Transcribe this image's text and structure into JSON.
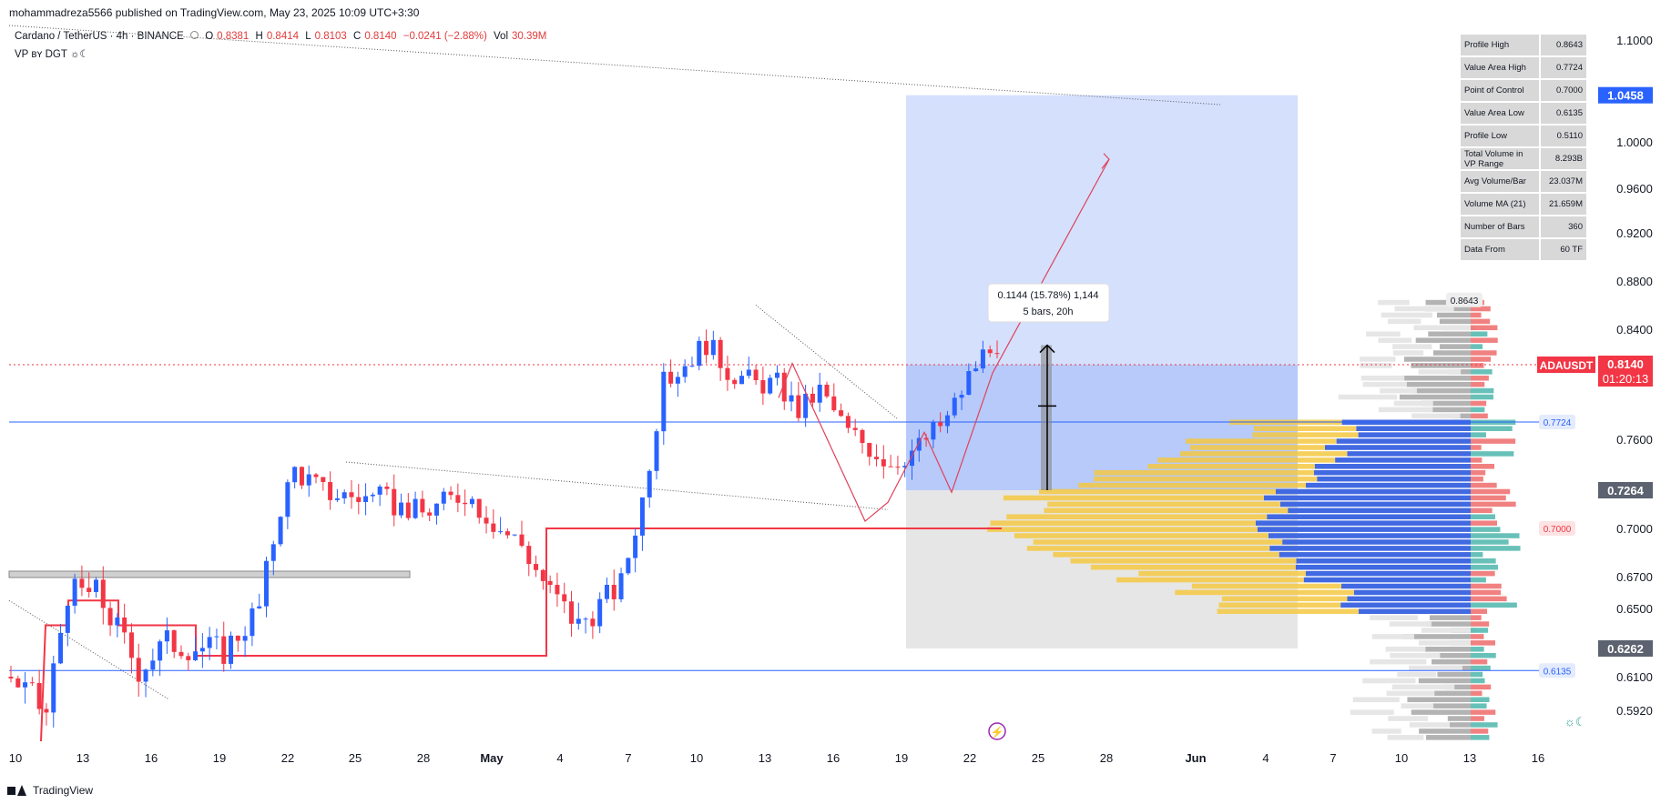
{
  "header": {
    "published_line": "mohammadreza5566 published on TradingView.com, May 23, 2025 10:09 UTC+3:30",
    "symbol_line": "Cardano / TetherUS · 4h · BINANCE",
    "open_label": "O",
    "open_value": "0.8381",
    "high_label": "H",
    "high_value": "0.8414",
    "low_label": "L",
    "low_value": "0.8103",
    "close_label": "C",
    "close_value": "0.8140",
    "change_value": "−0.0241 (−2.88%)",
    "vol_label": "Vol",
    "vol_value": "30.39M",
    "indicator_name": "VP ʙʏ DGT ☼☾"
  },
  "footer": {
    "brand": "TradingView"
  },
  "stats_table": [
    {
      "label": "Profile High",
      "value": "0.8643"
    },
    {
      "label": "Value Area High",
      "value": "0.7724"
    },
    {
      "label": "Point of Control",
      "value": "0.7000"
    },
    {
      "label": "Value Area Low",
      "value": "0.6135"
    },
    {
      "label": "Profile Low",
      "value": "0.5110"
    },
    {
      "label": "Total Volume in VP Range",
      "value": "8.293B"
    },
    {
      "label": "Avg Volume/Bar",
      "value": "23.037M"
    },
    {
      "label": "Volume MA (21)",
      "value": "21.659M"
    },
    {
      "label": "Number of Bars",
      "value": "360"
    },
    {
      "label": "Data From",
      "value": "60 TF"
    }
  ],
  "measure_tooltip": {
    "line1": "0.1144 (15.78%) 1,144",
    "line2": "5 bars, 20h"
  },
  "colors": {
    "up": "#2962ff",
    "down": "#f23645",
    "poc": "#f23645",
    "box_blue": "#bdd0fb",
    "box_grey": "#e0e0e0",
    "vp_yellow": "#f5c842",
    "vp_blue": "#4169e1",
    "vp_grey": "#b3b3b3",
    "vp_green": "#4db6ac",
    "vp_red": "#ef6b6b"
  },
  "chart_data": {
    "type": "candlestick",
    "symbol": "ADAUSDT",
    "x_tick_labels": [
      "10",
      "13",
      "16",
      "19",
      "22",
      "25",
      "28",
      "May",
      "4",
      "7",
      "10",
      "13",
      "16",
      "19",
      "22",
      "25",
      "28",
      "Jun",
      "4",
      "7",
      "10",
      "13",
      "16"
    ],
    "y_tick_labels": [
      "1.1000",
      "1.0000",
      "0.9600",
      "0.9200",
      "0.8800",
      "0.8400",
      "0.7600",
      "0.7000",
      "0.6700",
      "0.6500",
      "0.6100",
      "0.5920"
    ],
    "ylim": [
      0.575,
      1.11
    ],
    "price_labels": [
      {
        "text": "1.0458",
        "value": 1.0458,
        "kind": "box_top"
      },
      {
        "text": "ADAUSDT",
        "value": 0.814,
        "kind": "symbol"
      },
      {
        "text": "0.8140",
        "value": 0.814,
        "kind": "last"
      },
      {
        "text": "01:20:13",
        "value": 0.814,
        "kind": "countdown"
      },
      {
        "text": "0.7264",
        "value": 0.7264,
        "kind": "box_mid"
      },
      {
        "text": "0.6262",
        "value": 0.6262,
        "kind": "box_bottom"
      }
    ],
    "inline_labels": [
      {
        "text": "0.8643",
        "value": 0.8643
      },
      {
        "text": "0.7724",
        "value": 0.7724
      },
      {
        "text": "0.7000",
        "value": 0.7
      },
      {
        "text": "0.6135",
        "value": 0.6135
      }
    ],
    "value_area_high": 0.7724,
    "point_of_control": 0.7,
    "value_area_low": 0.6135,
    "candle_count": 140
  }
}
